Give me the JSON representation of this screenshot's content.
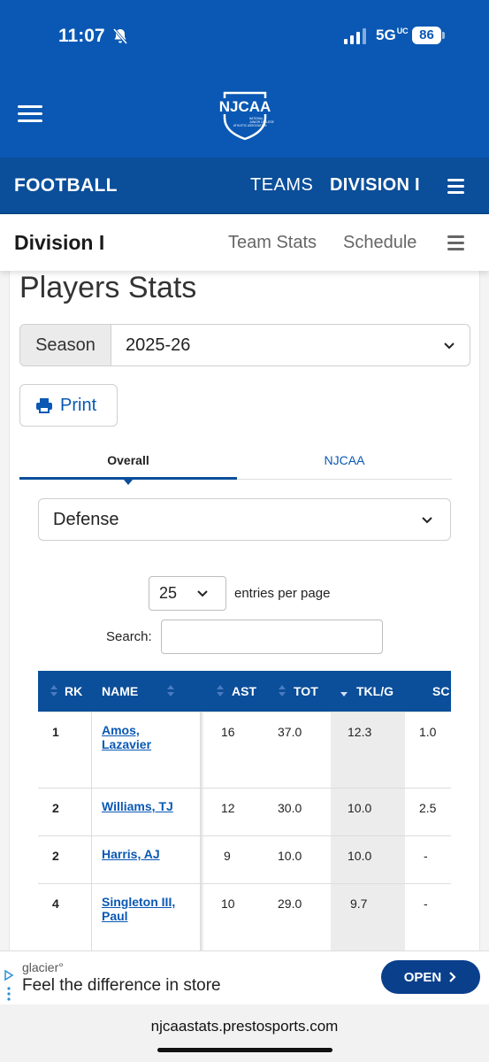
{
  "status_bar": {
    "time": "11:07",
    "network": "5G",
    "network_suffix": "UC",
    "battery": "86"
  },
  "header": {
    "logo_text": "NJCAA",
    "logo_subtitle": "NATIONAL JUNIOR COLLEGE ATHLETIC ASSOCIATION"
  },
  "sport_bar": {
    "title": "FOOTBALL",
    "teams": "TEAMS",
    "division": "DIVISION I"
  },
  "sub_nav": {
    "title": "Division I",
    "links": [
      "Team Stats",
      "Schedule"
    ]
  },
  "page": {
    "title": "Players Stats"
  },
  "season": {
    "label": "Season",
    "value": "2025-26"
  },
  "print": {
    "label": "Print"
  },
  "tabs": [
    "Overall",
    "NJCAA"
  ],
  "category": {
    "value": "Defense"
  },
  "entries": {
    "value": "25",
    "label": "entries per page"
  },
  "search": {
    "label": "Search:"
  },
  "table": {
    "columns": [
      "RK",
      "NAME",
      "AST",
      "TOT",
      "TKL/G",
      "SC"
    ],
    "rows": [
      {
        "rk": "1",
        "name": "Amos, Lazavier",
        "ast": "16",
        "tot": "37.0",
        "tklg": "12.3",
        "sc": "1.0"
      },
      {
        "rk": "2",
        "name": "Williams, TJ",
        "ast": "12",
        "tot": "30.0",
        "tklg": "10.0",
        "sc": "2.5"
      },
      {
        "rk": "2",
        "name": "Harris, AJ",
        "ast": "9",
        "tot": "10.0",
        "tklg": "10.0",
        "sc": "-"
      },
      {
        "rk": "4",
        "name": "Singleton III, Paul",
        "ast": "10",
        "tot": "29.0",
        "tklg": "9.7",
        "sc": "-"
      }
    ]
  },
  "ad": {
    "brand": "glacier°",
    "text": "Feel the difference in store",
    "button": "OPEN"
  },
  "url_bar": {
    "url": "njcaastats.prestosports.com"
  },
  "colors": {
    "primary": "#0a58b4",
    "dark_primary": "#0b4e9a"
  }
}
